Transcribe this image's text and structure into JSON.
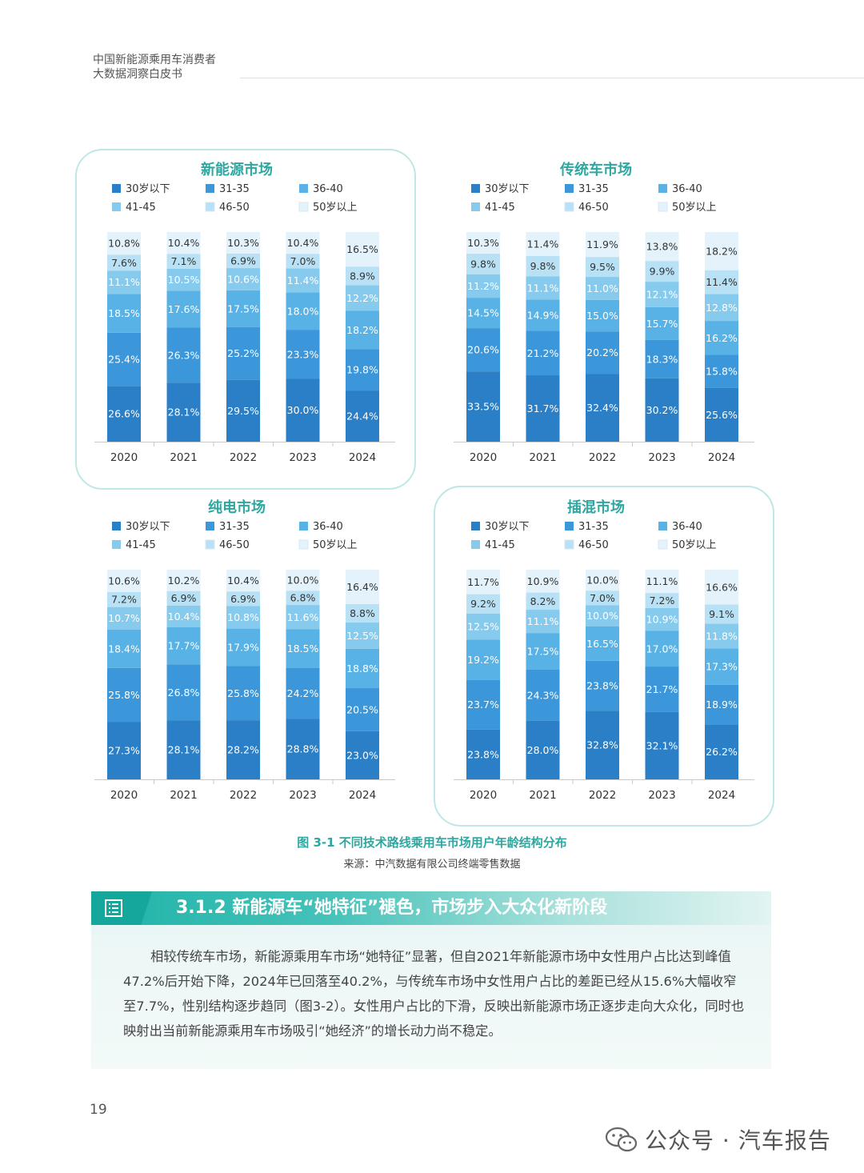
{
  "header": {
    "line1": "中国新能源乘用车消费者",
    "line2": "大数据洞察白皮书"
  },
  "legend_labels": [
    "30岁以下",
    "31-35",
    "36-40",
    "41-45",
    "46-50",
    "50岁以上"
  ],
  "colors": {
    "segments": [
      "#2a7fc6",
      "#3b97d9",
      "#58b2e6",
      "#86cbee",
      "#b9e1f5",
      "#e4f3fb"
    ],
    "panel_border": "#bfe7e6",
    "accent": "#2fa7a0",
    "column_bg": "#f0f3f6"
  },
  "chart_data": [
    {
      "type": "bar",
      "title": "新能源市场",
      "categories": [
        "2020",
        "2021",
        "2022",
        "2023",
        "2024"
      ],
      "series": [
        {
          "name": "30岁以下",
          "values": [
            26.6,
            28.1,
            29.5,
            30.0,
            24.4
          ]
        },
        {
          "name": "31-35",
          "values": [
            25.4,
            26.3,
            25.2,
            23.3,
            19.8
          ]
        },
        {
          "name": "36-40",
          "values": [
            18.5,
            17.6,
            17.5,
            18.0,
            18.2
          ]
        },
        {
          "name": "41-45",
          "values": [
            11.1,
            10.5,
            10.6,
            11.4,
            12.2
          ]
        },
        {
          "name": "46-50",
          "values": [
            7.6,
            7.1,
            6.9,
            7.0,
            8.9
          ]
        },
        {
          "name": "50岁以上",
          "values": [
            10.8,
            10.4,
            10.3,
            10.4,
            16.5
          ]
        }
      ]
    },
    {
      "type": "bar",
      "title": "传统车市场",
      "categories": [
        "2020",
        "2021",
        "2022",
        "2023",
        "2024"
      ],
      "series": [
        {
          "name": "30岁以下",
          "values": [
            33.5,
            31.7,
            32.4,
            30.2,
            25.6
          ]
        },
        {
          "name": "31-35",
          "values": [
            20.6,
            21.2,
            20.2,
            18.3,
            15.8
          ]
        },
        {
          "name": "36-40",
          "values": [
            14.5,
            14.9,
            15.0,
            15.7,
            16.2
          ]
        },
        {
          "name": "41-45",
          "values": [
            11.2,
            11.1,
            11.0,
            12.1,
            12.8
          ]
        },
        {
          "name": "46-50",
          "values": [
            9.8,
            9.8,
            9.5,
            9.9,
            11.4
          ]
        },
        {
          "name": "50岁以上",
          "values": [
            10.3,
            11.4,
            11.9,
            13.8,
            18.2
          ]
        }
      ]
    },
    {
      "type": "bar",
      "title": "纯电市场",
      "categories": [
        "2020",
        "2021",
        "2022",
        "2023",
        "2024"
      ],
      "series": [
        {
          "name": "30岁以下",
          "values": [
            27.3,
            28.1,
            28.2,
            28.8,
            23.0
          ]
        },
        {
          "name": "31-35",
          "values": [
            25.8,
            26.8,
            25.8,
            24.2,
            20.5
          ]
        },
        {
          "name": "36-40",
          "values": [
            18.4,
            17.7,
            17.9,
            18.5,
            18.8
          ]
        },
        {
          "name": "41-45",
          "values": [
            10.7,
            10.4,
            10.8,
            11.6,
            12.5
          ]
        },
        {
          "name": "46-50",
          "values": [
            7.2,
            6.9,
            6.9,
            6.8,
            8.8
          ]
        },
        {
          "name": "50岁以上",
          "values": [
            10.6,
            10.2,
            10.4,
            10.0,
            16.4
          ]
        }
      ]
    },
    {
      "type": "bar",
      "title": "插混市场",
      "categories": [
        "2020",
        "2021",
        "2022",
        "2023",
        "2024"
      ],
      "series": [
        {
          "name": "30岁以下",
          "values": [
            23.8,
            28.0,
            32.8,
            32.1,
            26.2
          ]
        },
        {
          "name": "31-35",
          "values": [
            23.7,
            24.3,
            23.8,
            21.7,
            18.9
          ]
        },
        {
          "name": "36-40",
          "values": [
            19.2,
            17.5,
            16.5,
            17.0,
            17.3
          ]
        },
        {
          "name": "41-45",
          "values": [
            12.5,
            11.1,
            10.0,
            10.9,
            11.8
          ]
        },
        {
          "name": "46-50",
          "values": [
            9.2,
            8.2,
            7.0,
            7.2,
            9.1
          ]
        },
        {
          "name": "50岁以上",
          "values": [
            11.7,
            10.9,
            10.0,
            11.1,
            16.6
          ]
        }
      ]
    }
  ],
  "figure": {
    "caption": "图 3-1 不同技术路线乘用车市场用户年龄结构分布",
    "source": "来源：中汽数据有限公司终端零售数据"
  },
  "section": {
    "title": "3.1.2 新能源车“她特征”褪色，市场步入大众化新阶段",
    "icon": "list-icon",
    "body": "相较传统车市场，新能源乘用车市场“她特征”显著，但自2021年新能源市场中女性用户占比达到峰值47.2%后开始下降，2024年已回落至40.2%，与传统车市场中女性用户占比的差距已经从15.6%大幅收窄至7.7%，性别结构逐步趋同（图3-2）。女性用户占比的下滑，反映出新能源市场正逐步走向大众化，同时也映射出当前新能源乘用车市场吸引“她经济”的增长动力尚不稳定。"
  },
  "page_number": "19",
  "watermark": {
    "text": "公众号 · 汽车报告",
    "icon": "wechat-icon"
  }
}
